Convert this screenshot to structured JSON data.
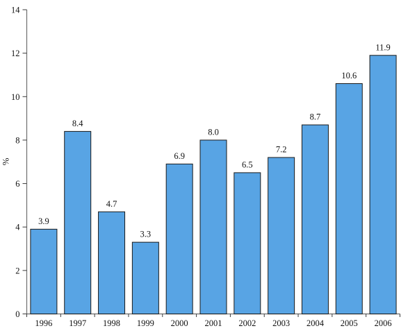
{
  "chart_data": {
    "type": "bar",
    "title": "",
    "categories": [
      "1996",
      "1997",
      "1998",
      "1999",
      "2000",
      "2001",
      "2002",
      "2003",
      "2004",
      "2005",
      "2006"
    ],
    "values": [
      3.9,
      8.4,
      4.7,
      3.3,
      6.9,
      8.0,
      6.5,
      7.2,
      8.7,
      10.6,
      11.9
    ],
    "value_labels": [
      "3.9",
      "8.4",
      "4.7",
      "3.3",
      "6.9",
      "8.0",
      "6.5",
      "7.2",
      "8.7",
      "10.6",
      "11.9"
    ],
    "xlabel": "",
    "ylabel": "%",
    "ylim": [
      0,
      14
    ],
    "ytick_step": 2,
    "yticks": [
      "0",
      "2",
      "4",
      "6",
      "8",
      "10",
      "12",
      "14"
    ],
    "grid": false,
    "legend": "none",
    "bar_color": "#58A4E4",
    "bar_border_color": "#1a1a1a",
    "axis_color": "#6e6e6e",
    "tick_color": "#3a3a3a",
    "text_color": "#111111"
  }
}
